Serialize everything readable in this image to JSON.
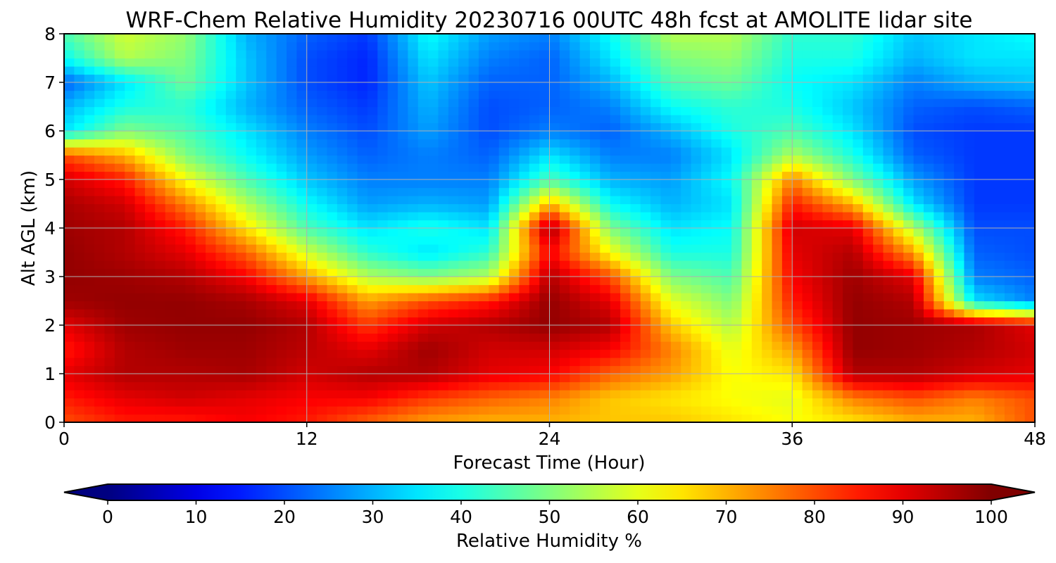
{
  "chart_data": {
    "type": "heatmap",
    "title": "WRF-Chem Relative Humidity 20230716 00UTC 48h fcst at AMOLITE lidar site",
    "xlabel": "Forecast Time (Hour)",
    "ylabel": "Alt AGL (km)",
    "xlim": [
      0,
      48
    ],
    "ylim": [
      0,
      8
    ],
    "x_ticks": [
      0,
      12,
      24,
      36,
      48
    ],
    "y_ticks": [
      0,
      1,
      2,
      3,
      4,
      5,
      6,
      7,
      8
    ],
    "grid": true,
    "colormap": "jet",
    "colorbar": {
      "label": "Relative Humidity %",
      "ticks": [
        0,
        10,
        20,
        30,
        40,
        50,
        60,
        70,
        80,
        90,
        100
      ],
      "range": [
        0,
        100
      ],
      "extend": "both",
      "orientation": "horizontal"
    },
    "x": [
      0,
      3,
      6,
      9,
      12,
      15,
      18,
      21,
      24,
      27,
      30,
      33,
      36,
      39,
      42,
      45,
      48
    ],
    "y": [
      0,
      0.5,
      1,
      1.5,
      2,
      2.5,
      3,
      3.5,
      4,
      4.5,
      5,
      5.5,
      6,
      6.5,
      7,
      7.5,
      8
    ],
    "z": [
      [
        80,
        85,
        85,
        88,
        85,
        78,
        72,
        70,
        70,
        68,
        68,
        65,
        62,
        65,
        70,
        70,
        80
      ],
      [
        85,
        90,
        92,
        90,
        88,
        88,
        82,
        78,
        75,
        68,
        65,
        62,
        60,
        75,
        80,
        75,
        80
      ],
      [
        90,
        95,
        95,
        96,
        92,
        95,
        95,
        90,
        88,
        78,
        72,
        62,
        65,
        95,
        95,
        92,
        90
      ],
      [
        85,
        95,
        97,
        97,
        94,
        90,
        97,
        92,
        92,
        88,
        75,
        60,
        72,
        98,
        97,
        95,
        92
      ],
      [
        90,
        97,
        98,
        98,
        95,
        82,
        92,
        95,
        98,
        95,
        68,
        55,
        80,
        98,
        97,
        96,
        90
      ],
      [
        97,
        98,
        98,
        96,
        90,
        72,
        80,
        85,
        98,
        90,
        60,
        50,
        85,
        98,
        95,
        35,
        25
      ],
      [
        98,
        97,
        95,
        88,
        72,
        55,
        50,
        55,
        95,
        80,
        50,
        45,
        88,
        97,
        90,
        25,
        22
      ],
      [
        98,
        95,
        90,
        78,
        58,
        42,
        35,
        42,
        88,
        62,
        40,
        40,
        90,
        95,
        72,
        22,
        20
      ],
      [
        97,
        95,
        85,
        65,
        45,
        35,
        40,
        35,
        97,
        50,
        35,
        38,
        92,
        90,
        55,
        20,
        20
      ],
      [
        96,
        92,
        75,
        55,
        38,
        28,
        30,
        28,
        70,
        38,
        30,
        35,
        85,
        70,
        35,
        18,
        18
      ],
      [
        92,
        85,
        62,
        45,
        32,
        25,
        25,
        25,
        45,
        30,
        28,
        38,
        75,
        50,
        28,
        18,
        18
      ],
      [
        80,
        70,
        50,
        38,
        28,
        22,
        25,
        22,
        35,
        25,
        25,
        35,
        55,
        40,
        22,
        18,
        18
      ],
      [
        35,
        50,
        45,
        35,
        25,
        20,
        28,
        20,
        25,
        22,
        30,
        40,
        45,
        35,
        20,
        18,
        18
      ],
      [
        30,
        40,
        42,
        30,
        22,
        18,
        30,
        20,
        22,
        25,
        38,
        42,
        40,
        32,
        22,
        20,
        22
      ],
      [
        22,
        35,
        48,
        32,
        20,
        16,
        32,
        22,
        22,
        30,
        45,
        48,
        38,
        35,
        25,
        30,
        32
      ],
      [
        38,
        55,
        50,
        32,
        20,
        16,
        35,
        25,
        22,
        35,
        50,
        52,
        40,
        40,
        30,
        35,
        35
      ],
      [
        45,
        58,
        52,
        30,
        22,
        18,
        38,
        28,
        25,
        38,
        55,
        55,
        42,
        42,
        32,
        35,
        38
      ]
    ]
  }
}
